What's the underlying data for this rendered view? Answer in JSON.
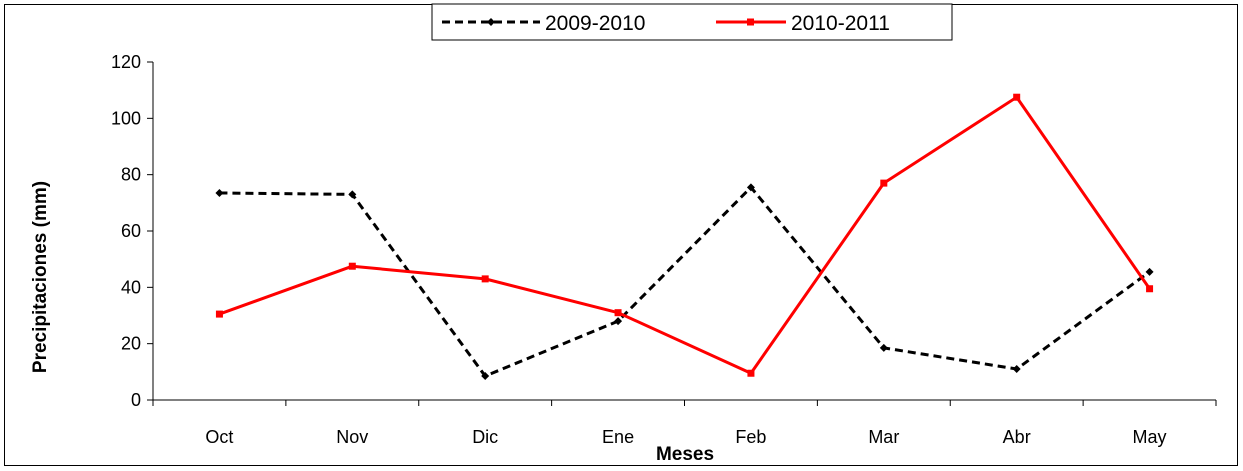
{
  "chart_data": {
    "type": "line",
    "title": "",
    "xlabel": "Meses",
    "ylabel": "Precipitaciones (mm)",
    "categories": [
      "Oct",
      "Nov",
      "Dic",
      "Ene",
      "Feb",
      "Mar",
      "Abr",
      "May"
    ],
    "ylim": [
      0,
      120
    ],
    "yticks": [
      0,
      20,
      40,
      60,
      80,
      100,
      120
    ],
    "grid": false,
    "legend_position": "top",
    "series": [
      {
        "name": "2009-2010",
        "values": [
          73.5,
          73,
          8.5,
          28,
          75.5,
          18.5,
          11,
          45.5
        ],
        "color": "#000000",
        "line_style": "dashed",
        "marker": "diamond"
      },
      {
        "name": "2010-2011",
        "values": [
          30.5,
          47.5,
          43,
          31,
          9.5,
          77,
          107.5,
          39.5
        ],
        "color": "#ff0000",
        "line_style": "solid",
        "marker": "square"
      }
    ]
  }
}
